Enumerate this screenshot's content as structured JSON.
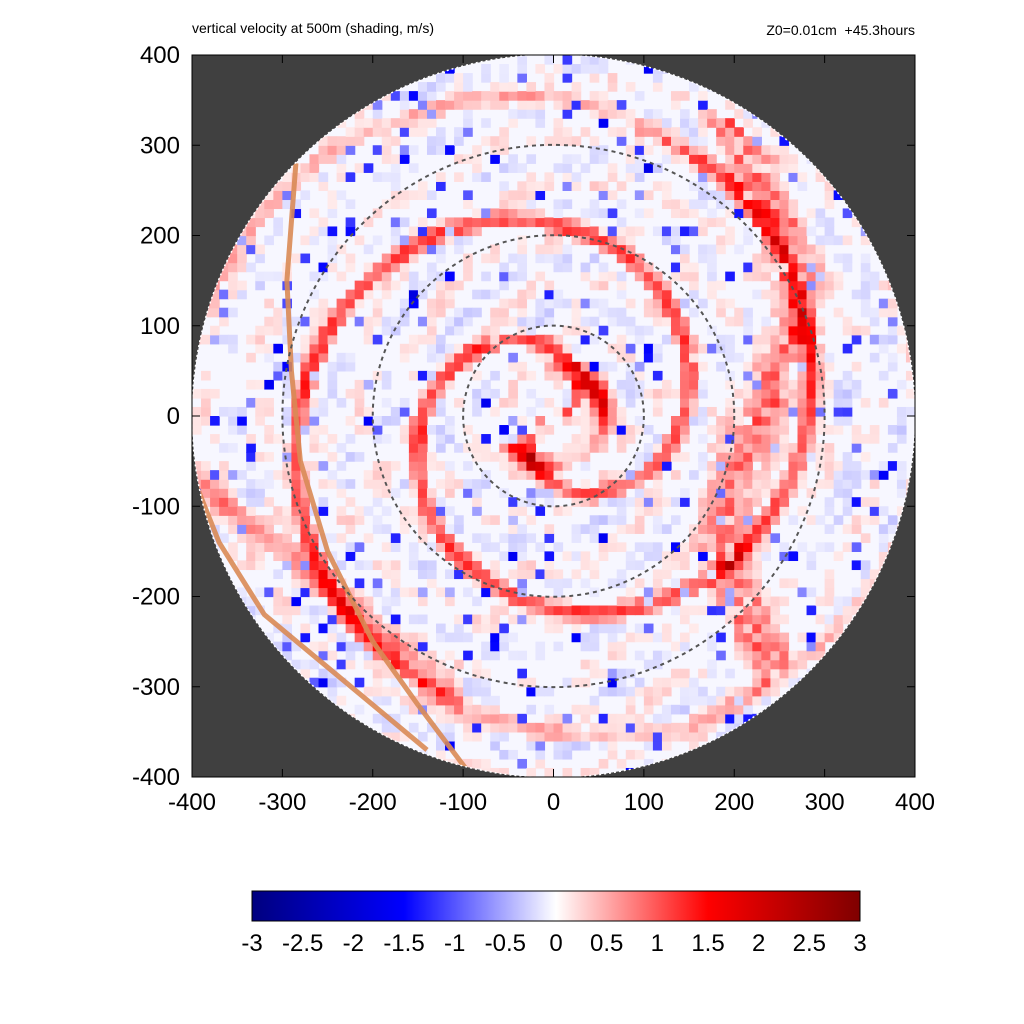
{
  "chart_data": {
    "type": "heatmap",
    "title": "vertical velocity at 500m (shading, m/s)",
    "subtitle": "Z0=0.01cm  +45.3hours",
    "xlabel": "",
    "ylabel": "",
    "xlim": [
      -400,
      400
    ],
    "ylim": [
      -400,
      400
    ],
    "xticks": [
      -400,
      -300,
      -200,
      -100,
      0,
      100,
      200,
      300,
      400
    ],
    "yticks": [
      -400,
      -300,
      -200,
      -100,
      0,
      100,
      200,
      300,
      400
    ],
    "domain_radius": 400,
    "background_color": "#404040",
    "range_rings": [
      100,
      200,
      300
    ],
    "colorbar": {
      "min": -3,
      "max": 3,
      "ticks": [
        "-3",
        "-2.5",
        "-2",
        "-1.5",
        "-1",
        "-0.5",
        "0",
        "0.5",
        "1",
        "1.5",
        "2",
        "2.5",
        "3"
      ],
      "colors": [
        "#00007f",
        "#0000ff",
        "#ffffff",
        "#ff0000",
        "#7f0000"
      ]
    },
    "coastlines": [
      [
        [
          -285,
          280
        ],
        [
          -295,
          150
        ],
        [
          -290,
          50
        ],
        [
          -280,
          -50
        ],
        [
          -250,
          -150
        ],
        [
          -200,
          -250
        ],
        [
          -150,
          -320
        ],
        [
          -90,
          -400
        ]
      ],
      [
        [
          -400,
          -65
        ],
        [
          -370,
          -140
        ],
        [
          -320,
          -220
        ],
        [
          -260,
          -270
        ],
        [
          -200,
          -320
        ],
        [
          -140,
          -370
        ]
      ]
    ],
    "features": [
      {
        "kind": "inner eyewall",
        "center": [
          0,
          0
        ],
        "approx_radius": 55,
        "peak_w": 2.5
      },
      {
        "kind": "rainband",
        "location": "east 150-320",
        "peak_w": 2.8
      },
      {
        "kind": "rainband",
        "location": "north-west spiral",
        "peak_w": 1.5
      },
      {
        "kind": "rainband",
        "location": "south-west near coast",
        "peak_w": 1.8
      }
    ]
  }
}
